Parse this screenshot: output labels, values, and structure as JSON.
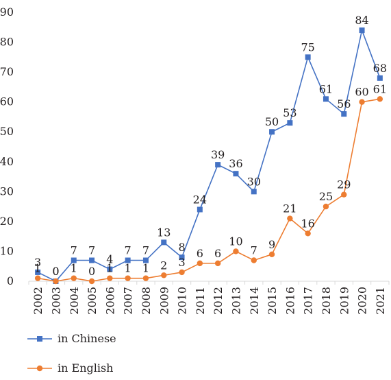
{
  "chart_data": {
    "type": "line",
    "title": "",
    "xlabel": "",
    "ylabel": "",
    "categories": [
      "2002",
      "2003",
      "2004",
      "2005",
      "2006",
      "2007",
      "2008",
      "2009",
      "2010",
      "2011",
      "2012",
      "2013",
      "2014",
      "2015",
      "2016",
      "2017",
      "2018",
      "2019",
      "2020",
      "2021"
    ],
    "ylim": [
      0,
      90
    ],
    "yticks": [
      0,
      10,
      20,
      30,
      40,
      50,
      60,
      70,
      80,
      90
    ],
    "grid": false,
    "legend_position": "bottom-left",
    "series": [
      {
        "name": "in Chinese",
        "color": "#4472c4",
        "marker": "square",
        "values": [
          3,
          0,
          7,
          7,
          4,
          7,
          7,
          13,
          8,
          24,
          39,
          36,
          30,
          50,
          53,
          75,
          61,
          56,
          84,
          68
        ]
      },
      {
        "name": "in English",
        "color": "#ed7d31",
        "marker": "circle",
        "values": [
          1,
          0,
          1,
          0,
          1,
          1,
          1,
          2,
          3,
          6,
          6,
          10,
          7,
          9,
          21,
          16,
          25,
          29,
          60,
          61
        ]
      }
    ]
  }
}
